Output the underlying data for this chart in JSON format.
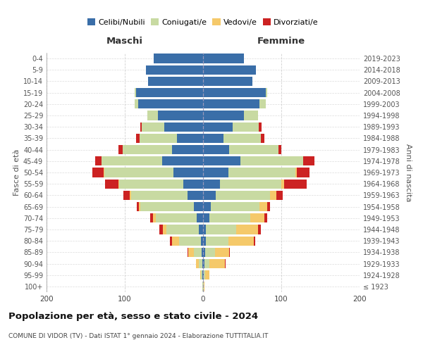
{
  "age_groups": [
    "100+",
    "95-99",
    "90-94",
    "85-89",
    "80-84",
    "75-79",
    "70-74",
    "65-69",
    "60-64",
    "55-59",
    "50-54",
    "45-49",
    "40-44",
    "35-39",
    "30-34",
    "25-29",
    "20-24",
    "15-19",
    "10-14",
    "5-9",
    "0-4"
  ],
  "birth_years": [
    "≤ 1923",
    "1924-1928",
    "1929-1933",
    "1934-1938",
    "1939-1943",
    "1944-1948",
    "1949-1953",
    "1954-1958",
    "1959-1963",
    "1964-1968",
    "1969-1973",
    "1974-1978",
    "1979-1983",
    "1984-1988",
    "1989-1993",
    "1994-1998",
    "1999-2003",
    "2004-2008",
    "2009-2013",
    "2014-2018",
    "2019-2023"
  ],
  "maschi": {
    "celibi": [
      0,
      1,
      1,
      2,
      3,
      5,
      8,
      12,
      20,
      25,
      38,
      52,
      40,
      33,
      50,
      58,
      83,
      86,
      70,
      73,
      63
    ],
    "coniugati": [
      1,
      2,
      4,
      10,
      28,
      42,
      52,
      68,
      72,
      82,
      88,
      78,
      63,
      48,
      28,
      13,
      4,
      1,
      0,
      0,
      0
    ],
    "vedovi": [
      0,
      1,
      4,
      7,
      9,
      4,
      4,
      2,
      2,
      1,
      1,
      0,
      0,
      0,
      0,
      0,
      0,
      0,
      0,
      0,
      0
    ],
    "divorziati": [
      0,
      0,
      0,
      1,
      2,
      5,
      4,
      3,
      8,
      17,
      14,
      8,
      5,
      5,
      2,
      0,
      0,
      0,
      0,
      0,
      0
    ]
  },
  "femmine": {
    "nubili": [
      0,
      1,
      2,
      3,
      4,
      4,
      8,
      10,
      16,
      22,
      32,
      48,
      33,
      26,
      38,
      52,
      72,
      80,
      63,
      68,
      52
    ],
    "coniugate": [
      1,
      2,
      6,
      12,
      28,
      38,
      52,
      62,
      70,
      78,
      86,
      80,
      63,
      48,
      33,
      18,
      8,
      2,
      0,
      0,
      0
    ],
    "vedove": [
      1,
      5,
      20,
      18,
      33,
      28,
      18,
      10,
      8,
      4,
      2,
      0,
      0,
      0,
      0,
      0,
      0,
      0,
      0,
      0,
      0
    ],
    "divorziate": [
      0,
      0,
      1,
      1,
      2,
      4,
      4,
      4,
      8,
      28,
      16,
      14,
      4,
      4,
      4,
      0,
      0,
      0,
      0,
      0,
      0
    ]
  },
  "colors": {
    "celibi": "#3a6ea8",
    "coniugati": "#c8daa2",
    "vedovi": "#f5c96a",
    "divorziati": "#cc2222"
  },
  "legend_labels": [
    "Celibi/Nubili",
    "Coniugati/e",
    "Vedovi/e",
    "Divorziati/e"
  ],
  "title_bold": "Popolazione per età, sesso e stato civile - 2024",
  "subtitle": "COMUNE DI VIDOR (TV) - Dati ISTAT 1° gennaio 2024 - Elaborazione TUTTITALIA.IT",
  "xlabel_left": "Maschi",
  "xlabel_right": "Femmine",
  "ylabel_left": "Fasce di età",
  "ylabel_right": "Anni di nascita",
  "xlim": 200,
  "bg_color": "#ffffff",
  "grid_color": "#cccccc"
}
